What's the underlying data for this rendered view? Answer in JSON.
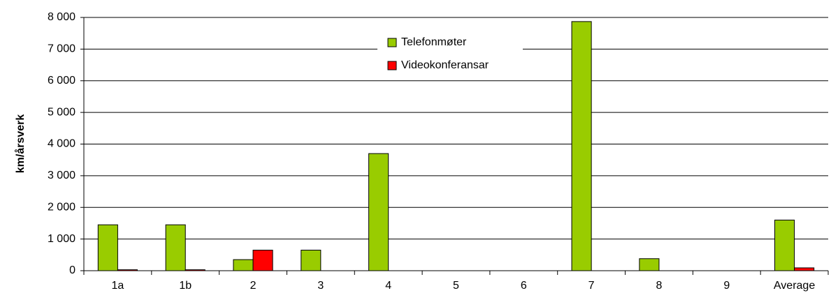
{
  "chart_data": {
    "type": "bar",
    "y_label": "km/årsverk",
    "categories": [
      "1a",
      "1b",
      "2",
      "3",
      "4",
      "5",
      "6",
      "7",
      "8",
      "9",
      "Average"
    ],
    "series": [
      {
        "name": "Telefonmøter",
        "color": "#99cc00",
        "values": [
          1450,
          1450,
          350,
          650,
          3700,
          0,
          0,
          7870,
          380,
          0,
          1600
        ]
      },
      {
        "name": "Videokonferansar",
        "color": "#ff0000",
        "values": [
          30,
          30,
          650,
          0,
          0,
          0,
          0,
          0,
          0,
          0,
          90
        ]
      }
    ],
    "ylim": [
      0,
      8000
    ],
    "yticks": [
      0,
      {
        "value": 1000,
        "label": "1 000"
      },
      {
        "value": 2000,
        "label": "2 000"
      },
      {
        "value": 3000,
        "label": "3 000"
      },
      {
        "value": 4000,
        "label": "4 000"
      },
      {
        "value": 5000,
        "label": "5 000"
      },
      {
        "value": 6000,
        "label": "6 000"
      },
      {
        "value": 7000,
        "label": "7 000"
      },
      {
        "value": 8000,
        "label": "8 000"
      }
    ],
    "grid": true,
    "legend": "top-center"
  }
}
